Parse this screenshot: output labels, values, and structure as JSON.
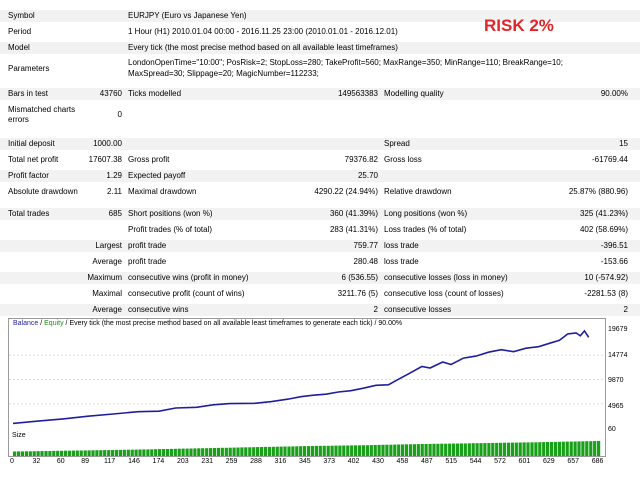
{
  "risk_label": "RISK 2%",
  "info": {
    "symbol": {
      "label": "Symbol",
      "value": "EURJPY (Euro vs Japanese Yen)"
    },
    "period": {
      "label": "Period",
      "value": "1 Hour (H1) 2010.01.04 00:00 - 2016.11.25 23:00 (2010.01.01 - 2016.12.01)"
    },
    "model": {
      "label": "Model",
      "value": "Every tick (the most precise method based on all available least timeframes)"
    },
    "parameters": {
      "label": "Parameters",
      "line1": "LondonOpenTime=\"10:00\"; PosRisk=2; StopLoss=280; TakeProfit=560; MaxRange=350; MinRange=110; BreakRange=10;",
      "line2": "MaxSpread=30; Slippage=20; MagicNumber=112233;"
    },
    "bars": {
      "label": "Bars in test",
      "value": "43760"
    },
    "ticks": {
      "label": "Ticks modelled",
      "value": "149563383"
    },
    "quality": {
      "label": "Modelling quality",
      "value": "90.00%"
    },
    "mismatched": {
      "label1": "Mismatched charts",
      "label2": "errors",
      "value": "0"
    }
  },
  "stats": {
    "initial_deposit": {
      "label": "Initial deposit",
      "value": "1000.00"
    },
    "spread": {
      "label": "Spread",
      "value": "15"
    },
    "net_profit": {
      "label": "Total net profit",
      "value": "17607.38"
    },
    "gross_profit": {
      "label": "Gross profit",
      "value": "79376.82"
    },
    "gross_loss": {
      "label": "Gross loss",
      "value": "-61769.44"
    },
    "profit_factor": {
      "label": "Profit factor",
      "value": "1.29"
    },
    "expected_payoff": {
      "label": "Expected payoff",
      "value": "25.70"
    },
    "abs_drawdown": {
      "label": "Absolute drawdown",
      "value": "2.11"
    },
    "max_drawdown": {
      "label": "Maximal drawdown",
      "value": "4290.22 (24.94%)"
    },
    "rel_drawdown": {
      "label": "Relative drawdown",
      "value": "25.87% (880.96)"
    },
    "total_trades": {
      "label": "Total trades",
      "value": "685"
    },
    "short_pos": {
      "label": "Short positions (won %)",
      "value": "360 (41.39%)"
    },
    "long_pos": {
      "label": "Long positions (won %)",
      "value": "325 (41.23%)"
    },
    "profit_trades": {
      "label": "Profit trades (% of total)",
      "value": "283 (41.31%)"
    },
    "loss_trades": {
      "label": "Loss trades (% of total)",
      "value": "402 (58.69%)"
    },
    "largest": {
      "label": "Largest",
      "profit_label": "profit trade",
      "profit_value": "759.77",
      "loss_label": "loss trade",
      "loss_value": "-396.51"
    },
    "average": {
      "label": "Average",
      "profit_label": "profit trade",
      "profit_value": "280.48",
      "loss_label": "loss trade",
      "loss_value": "-153.66"
    },
    "maximum": {
      "label": "Maximum",
      "wins_label": "consecutive wins (profit in money)",
      "wins_value": "6 (536.55)",
      "losses_label": "consecutive losses (loss in money)",
      "losses_value": "10 (-574.92)"
    },
    "maximal": {
      "label": "Maximal",
      "profit_label": "consecutive profit (count of wins)",
      "profit_value": "3211.76 (5)",
      "loss_label": "consecutive loss (count of losses)",
      "loss_value": "-2281.53 (8)"
    },
    "avg_consec": {
      "label": "Average",
      "wins_label": "consecutive wins",
      "wins_value": "2",
      "losses_label": "consecutive losses",
      "losses_value": "2"
    }
  },
  "chart_data": {
    "type": "line",
    "legend_balance": "Balance",
    "legend_sep": " / ",
    "legend_equity": "Equity",
    "title_rest": " / Every tick (the most precise method based on all available least timeframes to generate each tick) / 90.00%",
    "yticks": [
      "19679",
      "14774",
      "9870",
      "4965",
      "60"
    ],
    "ylim": [
      60,
      19679
    ],
    "x_ticks": [
      "0",
      "32",
      "60",
      "89",
      "117",
      "146",
      "174",
      "203",
      "231",
      "259",
      "288",
      "316",
      "345",
      "373",
      "402",
      "430",
      "458",
      "487",
      "515",
      "544",
      "572",
      "601",
      "629",
      "657",
      "686"
    ],
    "xlim": [
      0,
      700
    ],
    "balance_points": [
      [
        0,
        1000
      ],
      [
        30,
        1450
      ],
      [
        60,
        1900
      ],
      [
        90,
        2450
      ],
      [
        120,
        2900
      ],
      [
        150,
        3350
      ],
      [
        175,
        3450
      ],
      [
        195,
        4100
      ],
      [
        220,
        4250
      ],
      [
        240,
        4750
      ],
      [
        260,
        5000
      ],
      [
        290,
        5050
      ],
      [
        310,
        5400
      ],
      [
        330,
        5900
      ],
      [
        345,
        6400
      ],
      [
        360,
        6700
      ],
      [
        375,
        6900
      ],
      [
        390,
        7350
      ],
      [
        405,
        7600
      ],
      [
        420,
        8100
      ],
      [
        435,
        8700
      ],
      [
        450,
        8800
      ],
      [
        462,
        9900
      ],
      [
        475,
        11100
      ],
      [
        490,
        12500
      ],
      [
        500,
        12200
      ],
      [
        515,
        13400
      ],
      [
        525,
        12900
      ],
      [
        540,
        14200
      ],
      [
        555,
        14600
      ],
      [
        570,
        15400
      ],
      [
        585,
        15900
      ],
      [
        600,
        15500
      ],
      [
        615,
        16200
      ],
      [
        630,
        16500
      ],
      [
        645,
        17300
      ],
      [
        655,
        17800
      ],
      [
        665,
        19100
      ],
      [
        675,
        19300
      ],
      [
        680,
        18700
      ],
      [
        685,
        19700
      ],
      [
        690,
        18400
      ]
    ],
    "size_label": "Size",
    "size_values": [
      0.3,
      0.36,
      0.42,
      0.5,
      0.58,
      0.66,
      0.72,
      0.8,
      0.86,
      0.92,
      1.0
    ]
  },
  "colors": {
    "risk": "#e0262a",
    "balance_line": "#1f1f9e",
    "equity_legend": "#1a8f1a",
    "size_bar": "#18a018",
    "band": "#f2f2f2"
  }
}
